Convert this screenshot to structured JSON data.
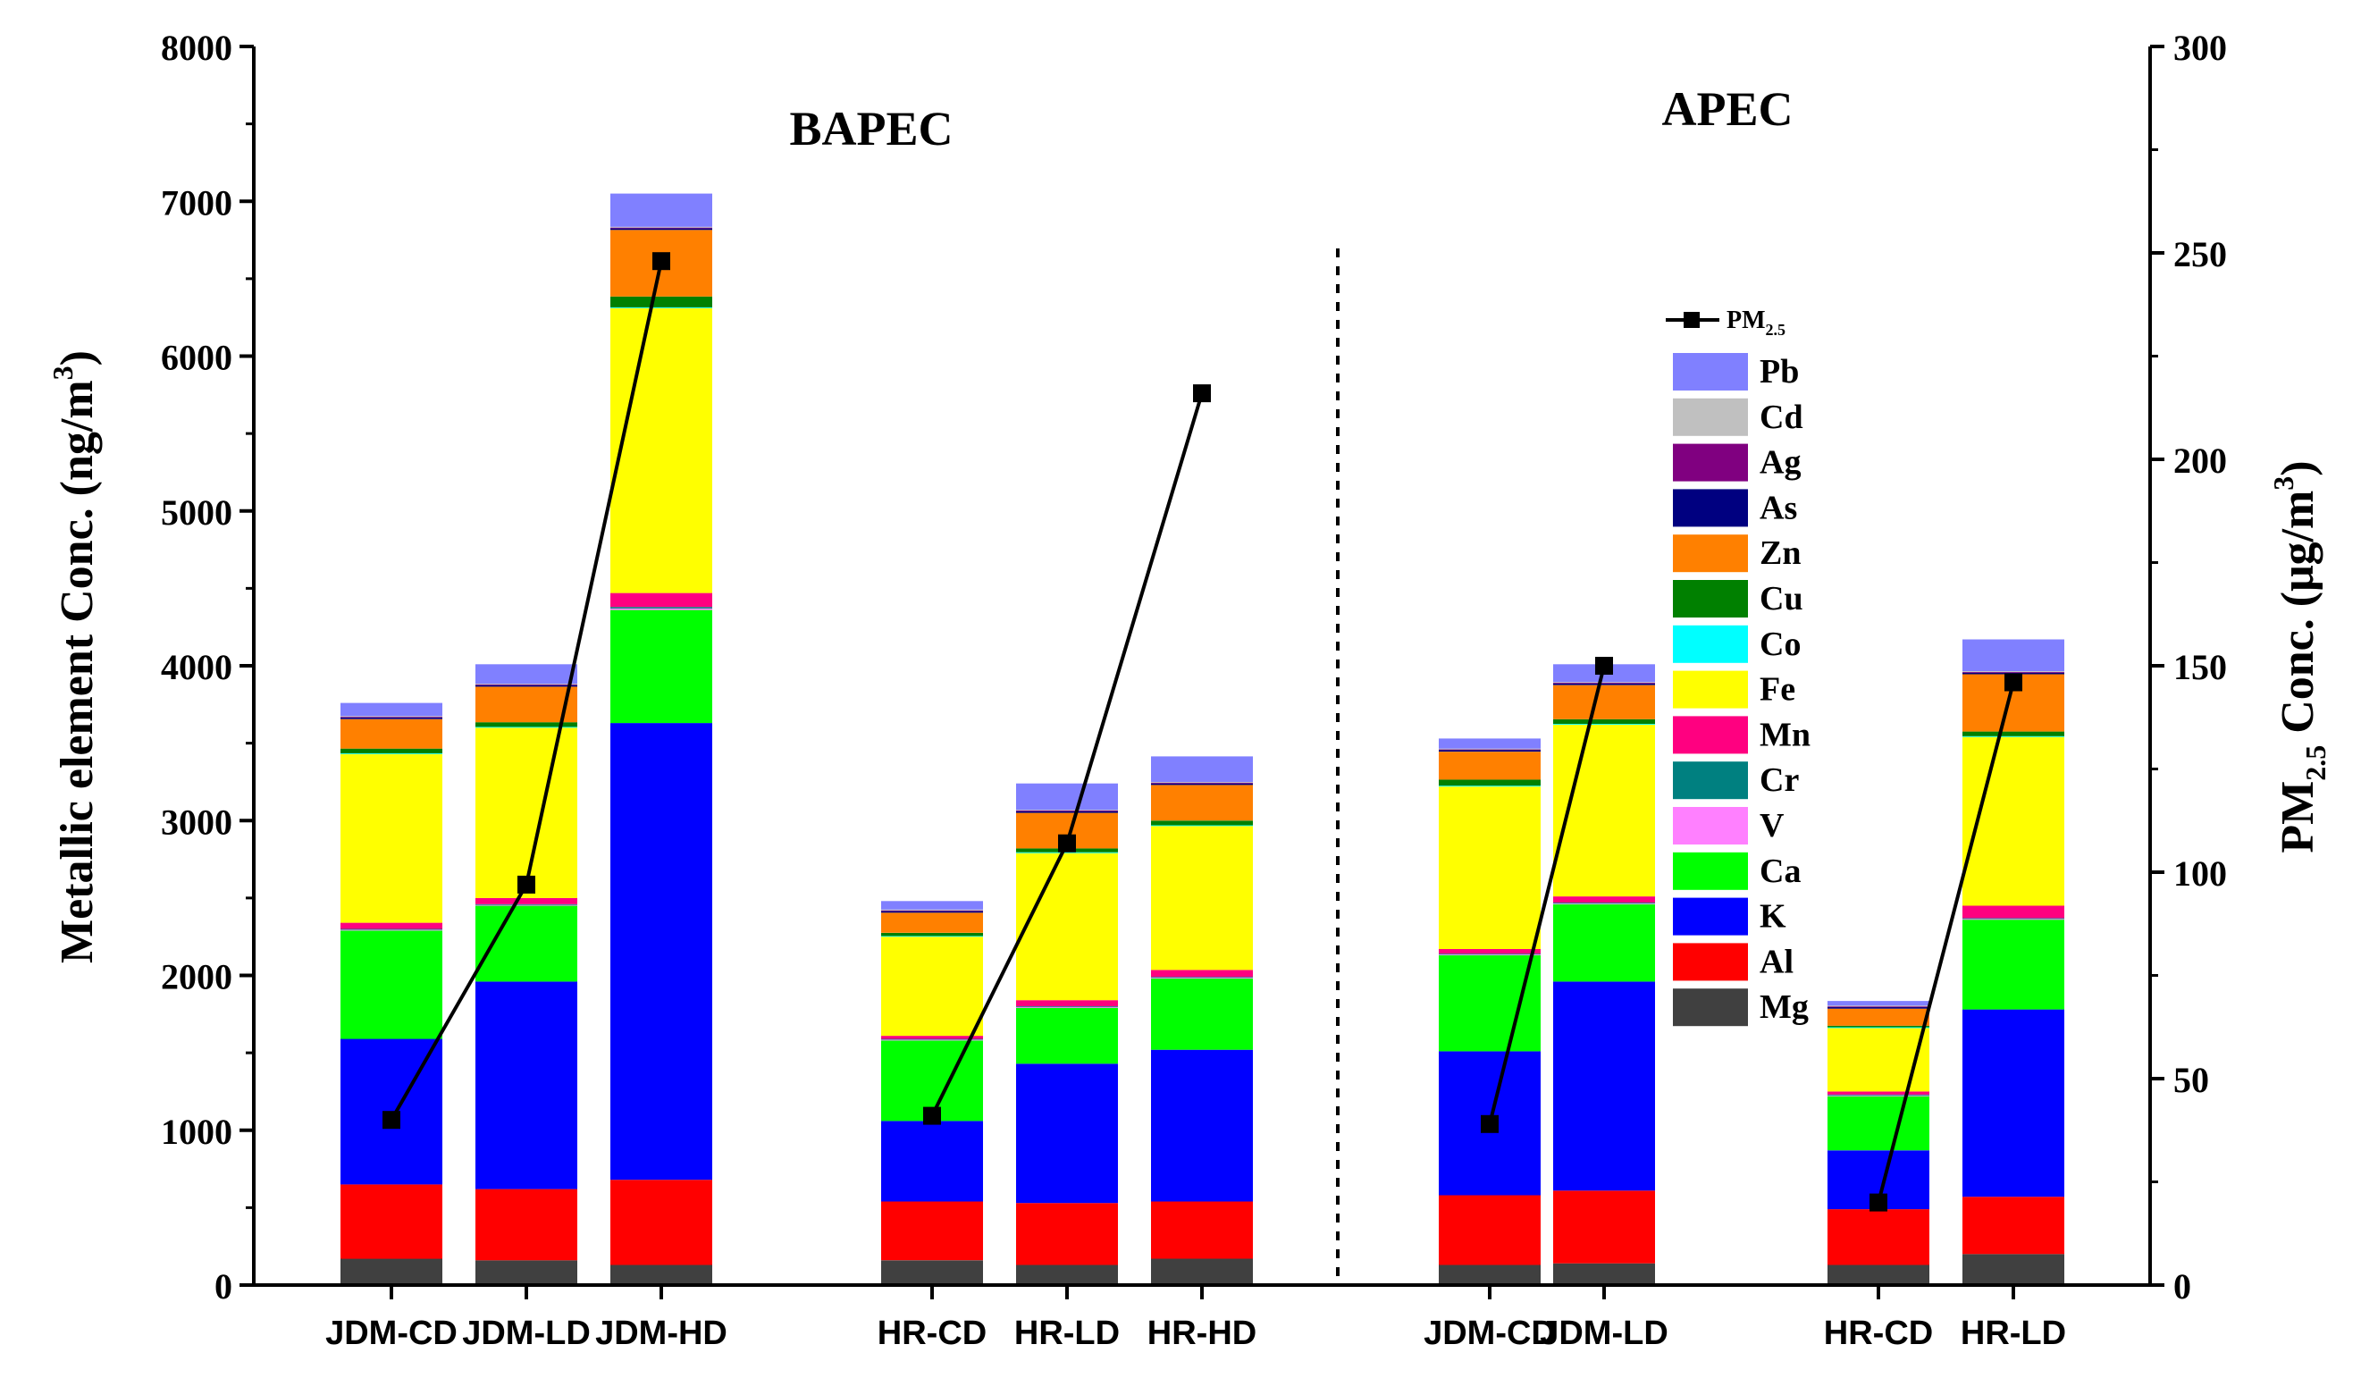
{
  "chart_data": {
    "type": "bar",
    "stacked": true,
    "ylabel": "Metallic element Conc. (ng/m",
    "ylabel_sup": "3",
    "ylabel_close": ")",
    "y2label_main": "PM",
    "y2label_sub": "2.5",
    "y2label_rest": " Conc. (μg/m",
    "y2label_sup": "3",
    "y2label_close": ")",
    "ylim": [
      0,
      8000
    ],
    "y2lim": [
      0,
      300
    ],
    "yticks": [
      "0",
      "1000",
      "2000",
      "3000",
      "4000",
      "5000",
      "6000",
      "7000",
      "8000"
    ],
    "y2ticks": [
      "0",
      "50",
      "100",
      "150",
      "200",
      "250",
      "300"
    ],
    "group_titles": [
      "BAPEC",
      "APEC"
    ],
    "categories": [
      "JDM-CD",
      "JDM-LD",
      "JDM-HD",
      "HR-CD",
      "HR-LD",
      "HR-HD",
      "JDM-CD",
      "JDM-LD",
      "HR-CD",
      "HR-LD"
    ],
    "elements": [
      "Mg",
      "Al",
      "K",
      "Ca",
      "V",
      "Cr",
      "Mn",
      "Fe",
      "Co",
      "Cu",
      "Zn",
      "As",
      "Ag",
      "Cd",
      "Pb"
    ],
    "colors": {
      "Mg": "#404040",
      "Al": "#ff0000",
      "K": "#0000ff",
      "Ca": "#00ff00",
      "V": "#ff80ff",
      "Cr": "#008080",
      "Mn": "#ff0080",
      "Fe": "#ffff00",
      "Co": "#00ffff",
      "Cu": "#008000",
      "Zn": "#ff8000",
      "As": "#000080",
      "Ag": "#800080",
      "Cd": "#c0c0c0",
      "Pb": "#8080ff"
    },
    "stacks": [
      {
        "Mg": 170,
        "Al": 480,
        "K": 940,
        "Ca": 700,
        "V": 5,
        "Cr": 5,
        "Mn": 40,
        "Fe": 1090,
        "Co": 5,
        "Cu": 30,
        "Zn": 190,
        "As": 10,
        "Ag": 5,
        "Cd": 5,
        "Pb": 85
      },
      {
        "Mg": 160,
        "Al": 460,
        "K": 1340,
        "Ca": 490,
        "V": 5,
        "Cr": 5,
        "Mn": 40,
        "Fe": 1100,
        "Co": 5,
        "Cu": 30,
        "Zn": 230,
        "As": 10,
        "Ag": 5,
        "Cd": 5,
        "Pb": 125
      },
      {
        "Mg": 130,
        "Al": 550,
        "K": 2950,
        "Ca": 730,
        "V": 10,
        "Cr": 10,
        "Mn": 90,
        "Fe": 1840,
        "Co": 5,
        "Cu": 70,
        "Zn": 430,
        "As": 10,
        "Ag": 5,
        "Cd": 5,
        "Pb": 215
      },
      {
        "Mg": 160,
        "Al": 380,
        "K": 520,
        "Ca": 520,
        "V": 5,
        "Cr": 5,
        "Mn": 20,
        "Fe": 640,
        "Co": 5,
        "Cu": 20,
        "Zn": 130,
        "As": 10,
        "Ag": 5,
        "Cd": 5,
        "Pb": 55
      },
      {
        "Mg": 130,
        "Al": 400,
        "K": 900,
        "Ca": 360,
        "V": 5,
        "Cr": 5,
        "Mn": 40,
        "Fe": 950,
        "Co": 5,
        "Cu": 25,
        "Zn": 230,
        "As": 10,
        "Ag": 5,
        "Cd": 5,
        "Pb": 170
      },
      {
        "Mg": 170,
        "Al": 370,
        "K": 980,
        "Ca": 460,
        "V": 5,
        "Cr": 5,
        "Mn": 45,
        "Fe": 930,
        "Co": 5,
        "Cu": 30,
        "Zn": 230,
        "As": 10,
        "Ag": 5,
        "Cd": 5,
        "Pb": 165
      },
      {
        "Mg": 130,
        "Al": 450,
        "K": 930,
        "Ca": 620,
        "V": 5,
        "Cr": 5,
        "Mn": 30,
        "Fe": 1050,
        "Co": 5,
        "Cu": 40,
        "Zn": 180,
        "As": 10,
        "Ag": 5,
        "Cd": 5,
        "Pb": 65
      },
      {
        "Mg": 140,
        "Al": 470,
        "K": 1350,
        "Ca": 500,
        "V": 5,
        "Cr": 5,
        "Mn": 40,
        "Fe": 1110,
        "Co": 5,
        "Cu": 30,
        "Zn": 220,
        "As": 10,
        "Ag": 5,
        "Cd": 5,
        "Pb": 115
      },
      {
        "Mg": 130,
        "Al": 360,
        "K": 380,
        "Ca": 350,
        "V": 5,
        "Cr": 5,
        "Mn": 20,
        "Fe": 410,
        "Co": 5,
        "Cu": 10,
        "Zn": 110,
        "As": 10,
        "Ag": 5,
        "Cd": 5,
        "Pb": 30
      },
      {
        "Mg": 200,
        "Al": 370,
        "K": 1210,
        "Ca": 580,
        "V": 5,
        "Cr": 5,
        "Mn": 80,
        "Fe": 1090,
        "Co": 5,
        "Cu": 30,
        "Zn": 370,
        "As": 10,
        "Ag": 5,
        "Cd": 5,
        "Pb": 205
      }
    ],
    "pm25_series": [
      {
        "name": "PM2.5",
        "label_main": "PM",
        "label_sub": "2.5",
        "points": [
          {
            "index": 0,
            "value": 40
          },
          {
            "index": 1,
            "value": 97
          },
          {
            "index": 2,
            "value": 248
          }
        ]
      },
      {
        "name": "PM2.5",
        "points": [
          {
            "index": 3,
            "value": 41
          },
          {
            "index": 4,
            "value": 107
          },
          {
            "index": 5,
            "value": 216
          }
        ]
      },
      {
        "name": "PM2.5",
        "points": [
          {
            "index": 6,
            "value": 39
          },
          {
            "index": 7,
            "value": 150
          }
        ]
      },
      {
        "name": "PM2.5",
        "points": [
          {
            "index": 8,
            "value": 20
          },
          {
            "index": 9,
            "value": 146
          }
        ]
      }
    ],
    "legend_order": [
      "Pb",
      "Cd",
      "Ag",
      "As",
      "Zn",
      "Cu",
      "Co",
      "Fe",
      "Mn",
      "Cr",
      "V",
      "Ca",
      "K",
      "Al",
      "Mg"
    ],
    "divider": "dashed vertical line between BAPEC and APEC"
  }
}
